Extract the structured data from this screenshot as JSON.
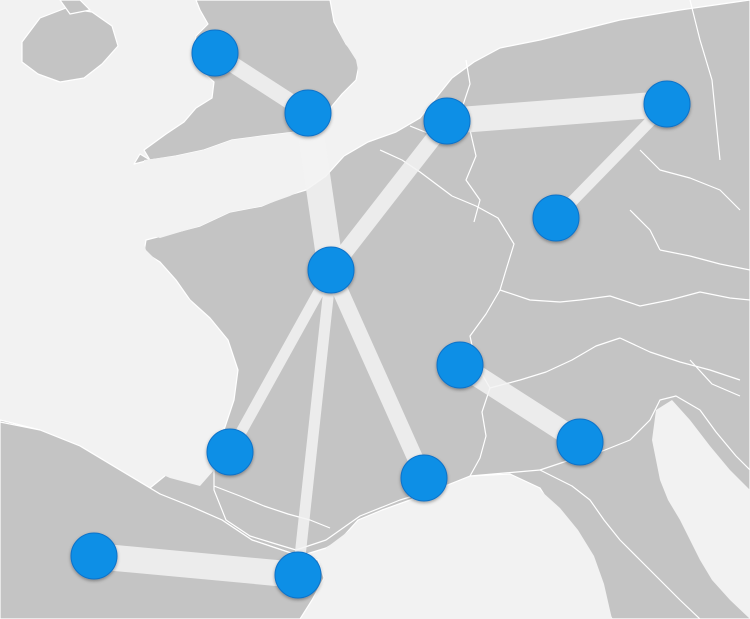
{
  "map": {
    "type": "route-network",
    "region": "Western Europe",
    "colors": {
      "sea": "#f2f2f2",
      "land": "#c4c4c4",
      "route": "#f4f4f4",
      "node": "#0b8fe6"
    },
    "nodes": [
      {
        "id": "n1",
        "icon": "location-dot-icon"
      },
      {
        "id": "n2",
        "icon": "location-dot-icon"
      },
      {
        "id": "n3",
        "icon": "location-dot-icon"
      },
      {
        "id": "n4",
        "icon": "location-dot-icon"
      },
      {
        "id": "n5",
        "icon": "location-dot-icon"
      },
      {
        "id": "n6",
        "icon": "location-dot-icon"
      },
      {
        "id": "n7",
        "icon": "location-dot-icon"
      },
      {
        "id": "n8",
        "icon": "location-dot-icon"
      },
      {
        "id": "n9",
        "icon": "location-dot-icon"
      },
      {
        "id": "n10",
        "icon": "location-dot-icon"
      },
      {
        "id": "n11",
        "icon": "location-dot-icon"
      },
      {
        "id": "n12",
        "icon": "location-dot-icon"
      },
      {
        "id": "n13",
        "icon": "location-dot-icon"
      }
    ],
    "routes": [
      {
        "from": "n1",
        "to": "n2",
        "weight": 2
      },
      {
        "from": "n2",
        "to": "n5",
        "weight": 4
      },
      {
        "from": "n5",
        "to": "n3",
        "weight": 2
      },
      {
        "from": "n3",
        "to": "n4",
        "weight": 4
      },
      {
        "from": "n4",
        "to": "n6",
        "weight": 1
      },
      {
        "from": "n5",
        "to": "n9",
        "weight": 1
      },
      {
        "from": "n5",
        "to": "n11",
        "weight": 1
      },
      {
        "from": "n5",
        "to": "n10",
        "weight": 2
      },
      {
        "from": "n7",
        "to": "n8",
        "weight": 3
      },
      {
        "from": "n12",
        "to": "n11",
        "weight": 4
      }
    ]
  }
}
